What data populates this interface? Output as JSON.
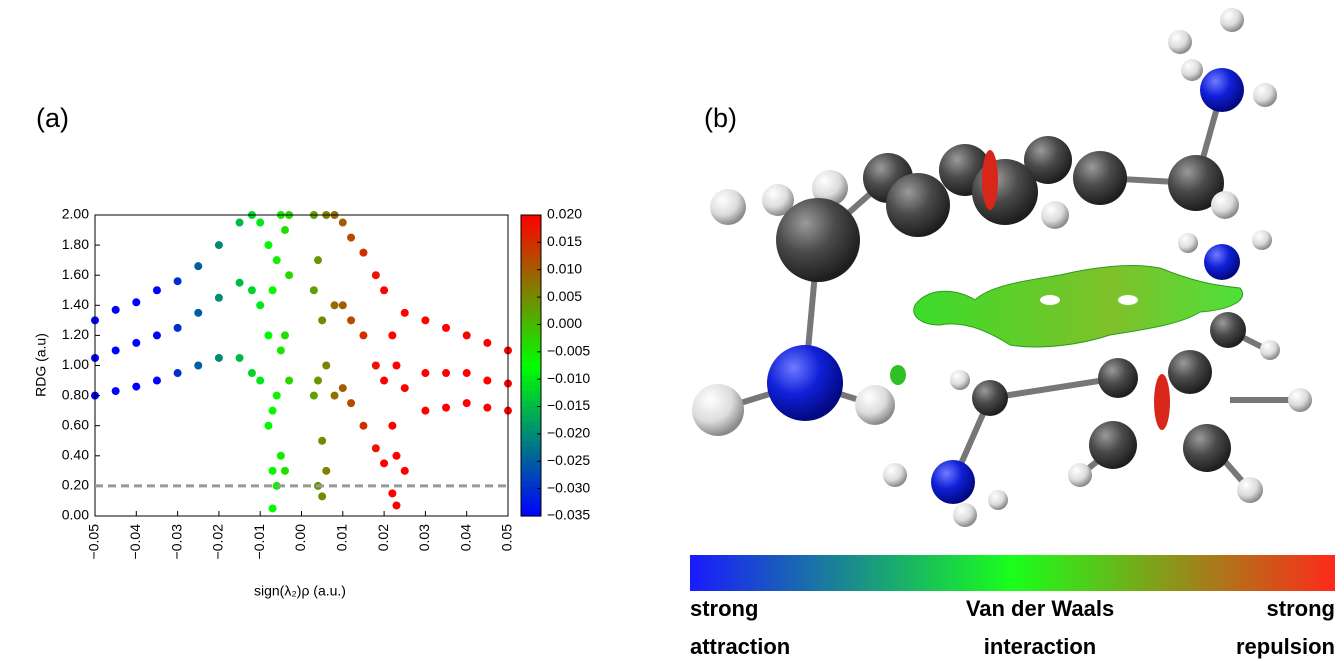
{
  "chart_data": {
    "type": "scatter",
    "panel_label": "(a)",
    "x_label": "sign(λ₂)ρ (a.u.)",
    "y_label": "RDG (a.u)",
    "xlim": [
      -0.05,
      0.05
    ],
    "ylim": [
      0,
      2
    ],
    "xticks": [
      {
        "value": -0.05,
        "label": "−0.05"
      },
      {
        "value": -0.04,
        "label": "−0.04"
      },
      {
        "value": -0.03,
        "label": "−0.03"
      },
      {
        "value": -0.02,
        "label": "−0.02"
      },
      {
        "value": -0.01,
        "label": "−0.01"
      },
      {
        "value": 0,
        "label": "0.00"
      },
      0.01,
      0.02,
      0.03,
      0.04,
      0.05
    ],
    "yticks": [
      {
        "value": 0,
        "label": "0.00"
      },
      {
        "value": 0.2,
        "label": "0.20"
      },
      {
        "value": 0.4,
        "label": "0.40"
      },
      {
        "value": 0.6,
        "label": "0.60"
      },
      {
        "value": 0.8,
        "label": "0.80"
      },
      {
        "value": 1,
        "label": "1.00"
      },
      {
        "value": 1.2,
        "label": "1.20"
      },
      {
        "value": 1.4,
        "label": "1.40"
      },
      {
        "value": 1.6,
        "label": "1.60"
      },
      {
        "value": 1.8,
        "label": "1.80"
      },
      {
        "value": 2,
        "label": "2.00"
      }
    ],
    "hline": 0.2,
    "colormap": [
      "#0000ff",
      "#00ff00",
      "#ff0000"
    ],
    "clim": [
      -0.035,
      0.02
    ],
    "cticks": [
      {
        "value": 0.02,
        "label": "0.020"
      },
      {
        "value": 0.015,
        "label": "0.015"
      },
      {
        "value": 0.01,
        "label": "0.010"
      },
      {
        "value": 0.005,
        "label": "0.005"
      },
      {
        "value": 0,
        "label": "0.000"
      },
      {
        "value": -0.005,
        "label": "−0.005"
      },
      {
        "value": -0.01,
        "label": "−0.010"
      },
      {
        "value": -0.015,
        "label": "−0.015"
      },
      {
        "value": -0.02,
        "label": "−0.020"
      },
      {
        "value": -0.025,
        "label": "−0.025"
      },
      {
        "value": -0.03,
        "label": "−0.030"
      },
      {
        "value": -0.035,
        "label": "−0.035"
      }
    ],
    "x": [
      -0.05,
      -0.05,
      -0.05,
      -0.045,
      -0.045,
      -0.045,
      -0.04,
      -0.04,
      -0.04,
      -0.035,
      -0.035,
      -0.035,
      -0.03,
      -0.03,
      -0.03,
      -0.025,
      -0.025,
      -0.025,
      -0.02,
      -0.02,
      -0.02,
      -0.015,
      -0.015,
      -0.015,
      -0.012,
      -0.012,
      -0.012,
      -0.01,
      -0.01,
      -0.01,
      -0.008,
      -0.008,
      -0.008,
      -0.007,
      -0.007,
      -0.007,
      -0.007,
      -0.006,
      -0.006,
      -0.006,
      -0.005,
      -0.005,
      -0.005,
      -0.004,
      -0.004,
      -0.004,
      -0.003,
      -0.003,
      -0.003,
      0.003,
      0.003,
      0.003,
      0.004,
      0.004,
      0.004,
      0.005,
      0.005,
      0.005,
      0.006,
      0.006,
      0.006,
      0.008,
      0.008,
      0.008,
      0.01,
      0.01,
      0.01,
      0.012,
      0.012,
      0.012,
      0.015,
      0.015,
      0.015,
      0.018,
      0.018,
      0.018,
      0.02,
      0.02,
      0.02,
      0.022,
      0.022,
      0.022,
      0.023,
      0.023,
      0.023,
      0.025,
      0.025,
      0.025,
      0.03,
      0.03,
      0.03,
      0.035,
      0.035,
      0.035,
      0.04,
      0.04,
      0.04,
      0.045,
      0.045,
      0.045,
      0.05,
      0.05,
      0.05
    ],
    "y": [
      0.8,
      1.05,
      1.3,
      0.83,
      1.1,
      1.37,
      0.86,
      1.15,
      1.42,
      0.9,
      1.2,
      1.5,
      0.95,
      1.25,
      1.56,
      1.0,
      1.35,
      1.66,
      1.05,
      1.45,
      1.8,
      1.05,
      1.55,
      1.95,
      0.95,
      1.5,
      2.0,
      0.9,
      1.4,
      1.95,
      0.6,
      1.2,
      1.8,
      0.05,
      0.3,
      0.7,
      1.5,
      0.2,
      0.8,
      1.7,
      0.4,
      1.1,
      2.0,
      0.3,
      1.2,
      1.9,
      0.9,
      1.6,
      2.0,
      0.8,
      1.5,
      2.0,
      0.2,
      0.9,
      1.7,
      0.13,
      0.5,
      1.3,
      0.3,
      1.0,
      2.0,
      0.8,
      1.4,
      2.0,
      0.85,
      1.4,
      1.95,
      0.75,
      1.3,
      1.85,
      0.6,
      1.2,
      1.75,
      0.45,
      1.0,
      1.6,
      0.35,
      0.9,
      1.5,
      0.15,
      0.6,
      1.2,
      0.07,
      0.4,
      1.0,
      0.3,
      0.85,
      1.35,
      0.7,
      0.95,
      1.3,
      0.72,
      0.95,
      1.25,
      0.75,
      0.95,
      1.2,
      0.72,
      0.9,
      1.15,
      0.7,
      0.88,
      1.1
    ]
  },
  "panel_b": {
    "label": "(b)",
    "scale_labels": [
      [
        "strong",
        "attraction"
      ],
      [
        "Van der Waals",
        "interaction"
      ],
      [
        "strong",
        "repulsion"
      ]
    ]
  }
}
